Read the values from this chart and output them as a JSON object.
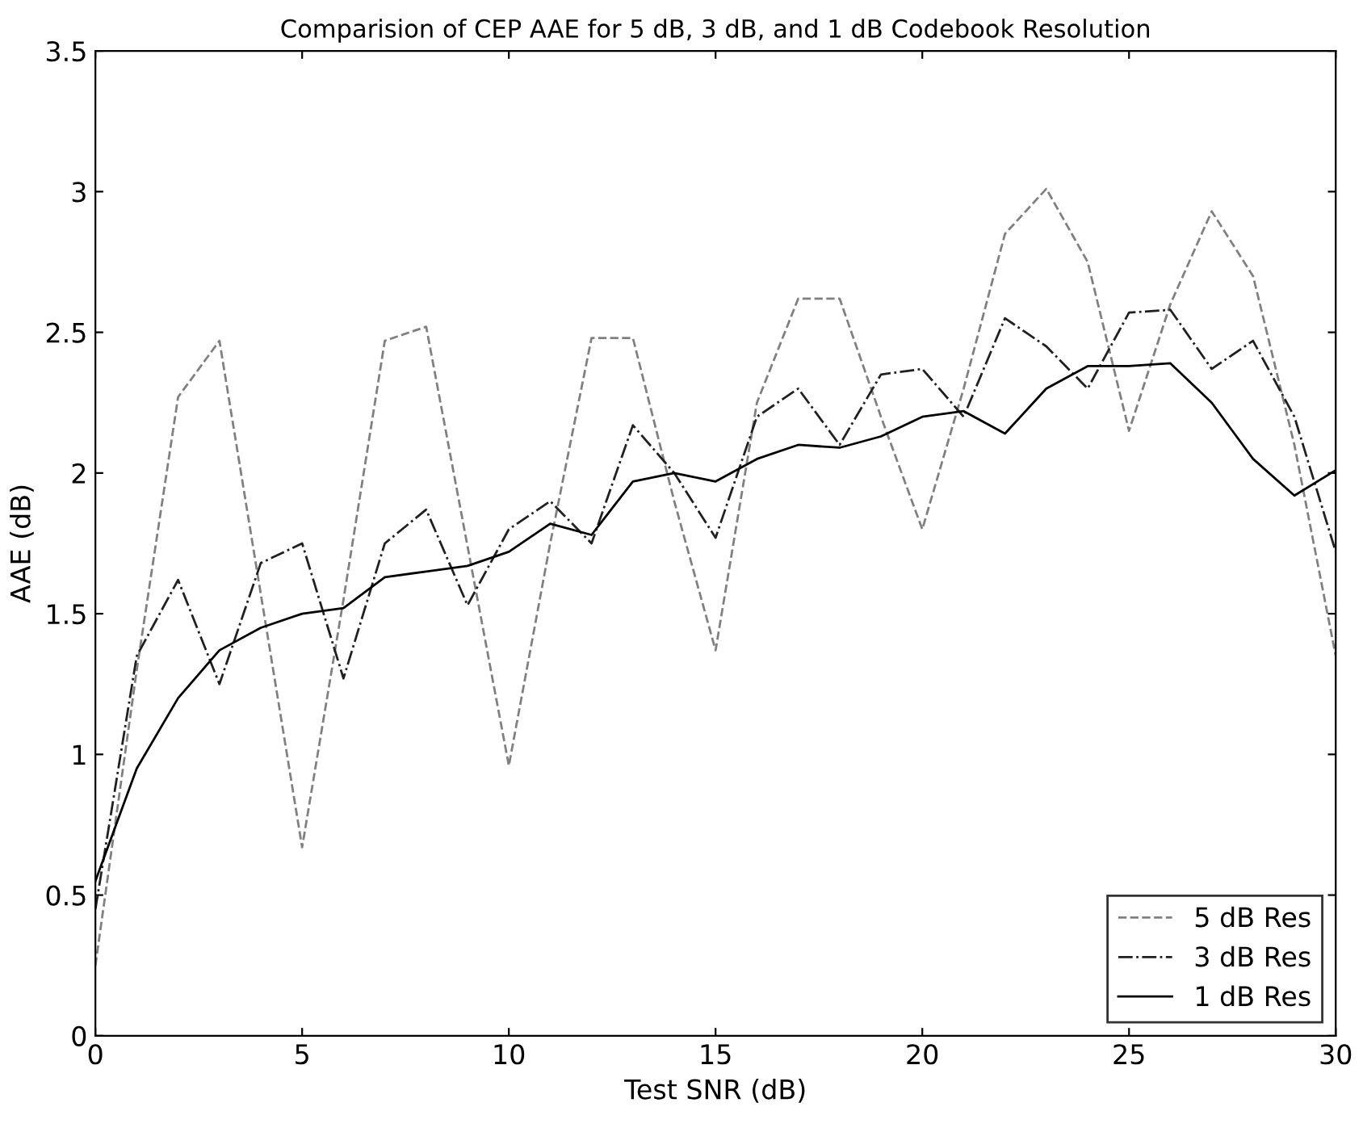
{
  "chart_data": {
    "type": "line",
    "title": "Comparision of CEP AAE for 5 dB, 3 dB, and 1 dB Codebook Resolution",
    "xlabel": "Test SNR (dB)",
    "ylabel": "AAE (dB)",
    "x": [
      0,
      1,
      2,
      3,
      4,
      5,
      6,
      7,
      8,
      9,
      10,
      11,
      12,
      13,
      14,
      15,
      16,
      17,
      18,
      19,
      20,
      21,
      22,
      23,
      24,
      25,
      26,
      27,
      28,
      29,
      30
    ],
    "series": [
      {
        "name": "5 dB Res",
        "color": "#808080",
        "line_style": "dashed",
        "values": [
          0.25,
          1.3,
          2.27,
          2.47,
          1.57,
          0.67,
          1.55,
          2.47,
          2.52,
          1.74,
          0.96,
          1.75,
          2.48,
          2.48,
          1.9,
          1.37,
          2.25,
          2.62,
          2.62,
          2.2,
          1.8,
          2.3,
          2.85,
          3.01,
          2.75,
          2.15,
          2.6,
          2.93,
          2.7,
          2.1,
          1.35
        ]
      },
      {
        "name": "3 dB Res",
        "color": "#202020",
        "line_style": "dashdot",
        "values": [
          0.45,
          1.35,
          1.62,
          1.25,
          1.68,
          1.75,
          1.27,
          1.75,
          1.87,
          1.53,
          1.8,
          1.9,
          1.75,
          2.17,
          2.0,
          1.77,
          2.2,
          2.3,
          2.1,
          2.35,
          2.37,
          2.2,
          2.55,
          2.45,
          2.3,
          2.57,
          2.58,
          2.37,
          2.47,
          2.2,
          1.72
        ]
      },
      {
        "name": "1 dB Res",
        "color": "#000000",
        "line_style": "solid",
        "values": [
          0.55,
          0.95,
          1.2,
          1.37,
          1.45,
          1.5,
          1.52,
          1.63,
          1.65,
          1.67,
          1.72,
          1.82,
          1.78,
          1.97,
          2.0,
          1.97,
          2.05,
          2.1,
          2.09,
          2.13,
          2.2,
          2.22,
          2.14,
          2.3,
          2.38,
          2.38,
          2.39,
          2.25,
          2.05,
          1.92,
          2.01
        ]
      }
    ],
    "xlim": [
      0,
      30
    ],
    "xticks": [
      0,
      5,
      10,
      15,
      20,
      25,
      30
    ],
    "ylim": [
      0,
      3.5
    ],
    "yticks": [
      0,
      0.5,
      1,
      1.5,
      2,
      2.5,
      3,
      3.5
    ],
    "grid": false,
    "legend": "bottom right",
    "marker": "none"
  }
}
